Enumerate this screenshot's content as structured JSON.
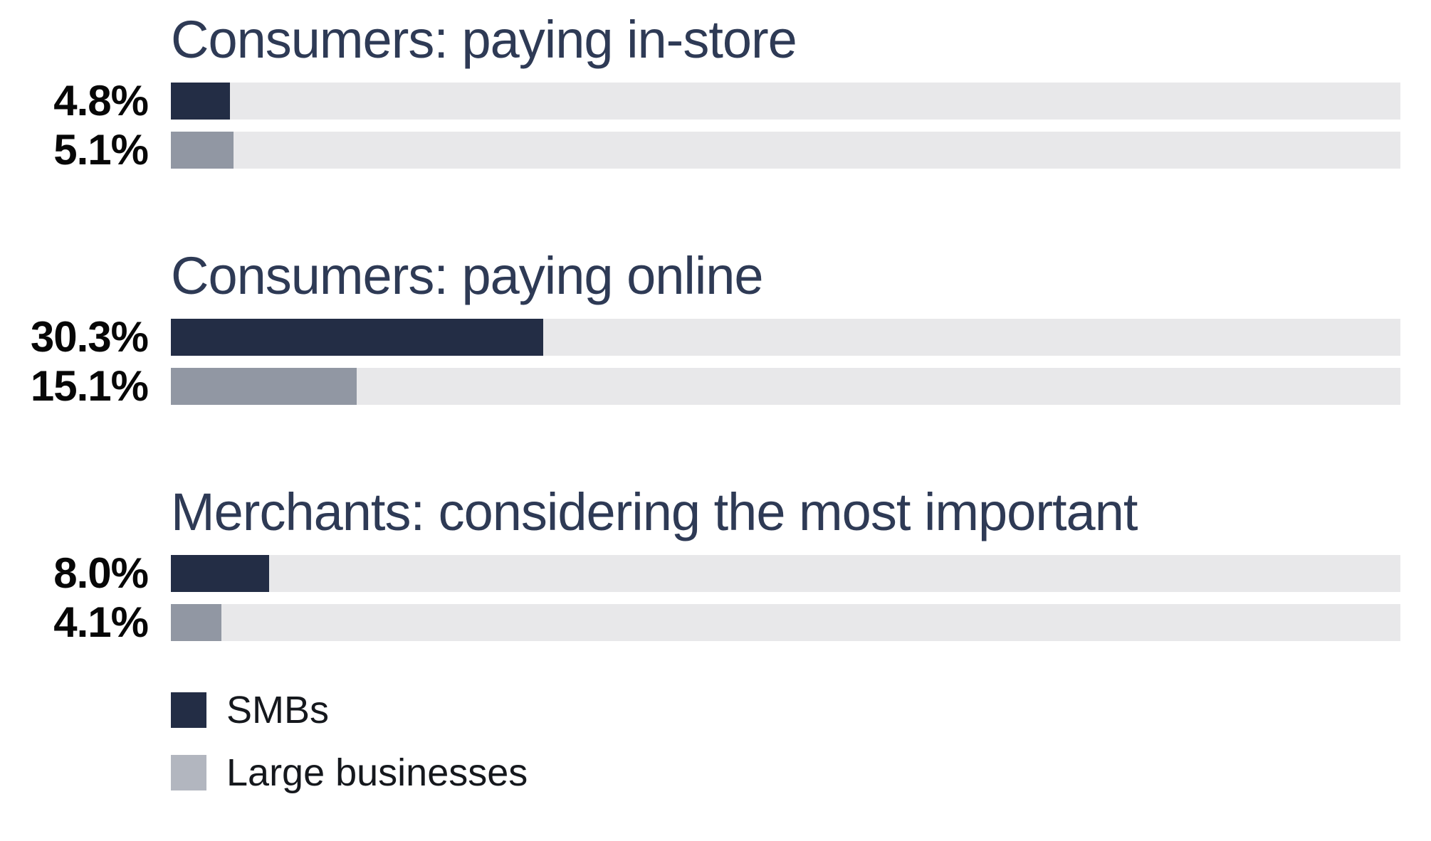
{
  "chart_data": {
    "type": "bar",
    "orientation": "horizontal",
    "value_unit": "%",
    "axis_range": [
      0,
      100
    ],
    "grid": false,
    "legend_position": "bottom-left",
    "series_names": [
      "SMBs",
      "Large businesses"
    ],
    "groups": [
      {
        "title": "Consumers: paying in-store",
        "series": [
          {
            "name": "SMBs",
            "value": 4.8,
            "label": "4.8%"
          },
          {
            "name": "Large businesses",
            "value": 5.1,
            "label": "5.1%"
          }
        ]
      },
      {
        "title": "Consumers: paying online",
        "series": [
          {
            "name": "SMBs",
            "value": 30.3,
            "label": "30.3%"
          },
          {
            "name": "Large businesses",
            "value": 15.1,
            "label": "15.1%"
          }
        ]
      },
      {
        "title": "Merchants: considering the most important",
        "series": [
          {
            "name": "SMBs",
            "value": 8.0,
            "label": "8.0%"
          },
          {
            "name": "Large businesses",
            "value": 4.1,
            "label": "4.1%"
          }
        ]
      }
    ],
    "legend": [
      {
        "label": "SMBs",
        "swatch_color": "#232D45"
      },
      {
        "label": "Large businesses",
        "swatch_color": "#B2B6BF"
      }
    ]
  },
  "colors": {
    "smb_bar": "#232D45",
    "large_bar": "#9197A3",
    "track": "#E8E8EA",
    "title_text": "#2E3A55",
    "value_text": "#070707",
    "legend_text": "#15181D",
    "background": "#FFFFFF"
  }
}
